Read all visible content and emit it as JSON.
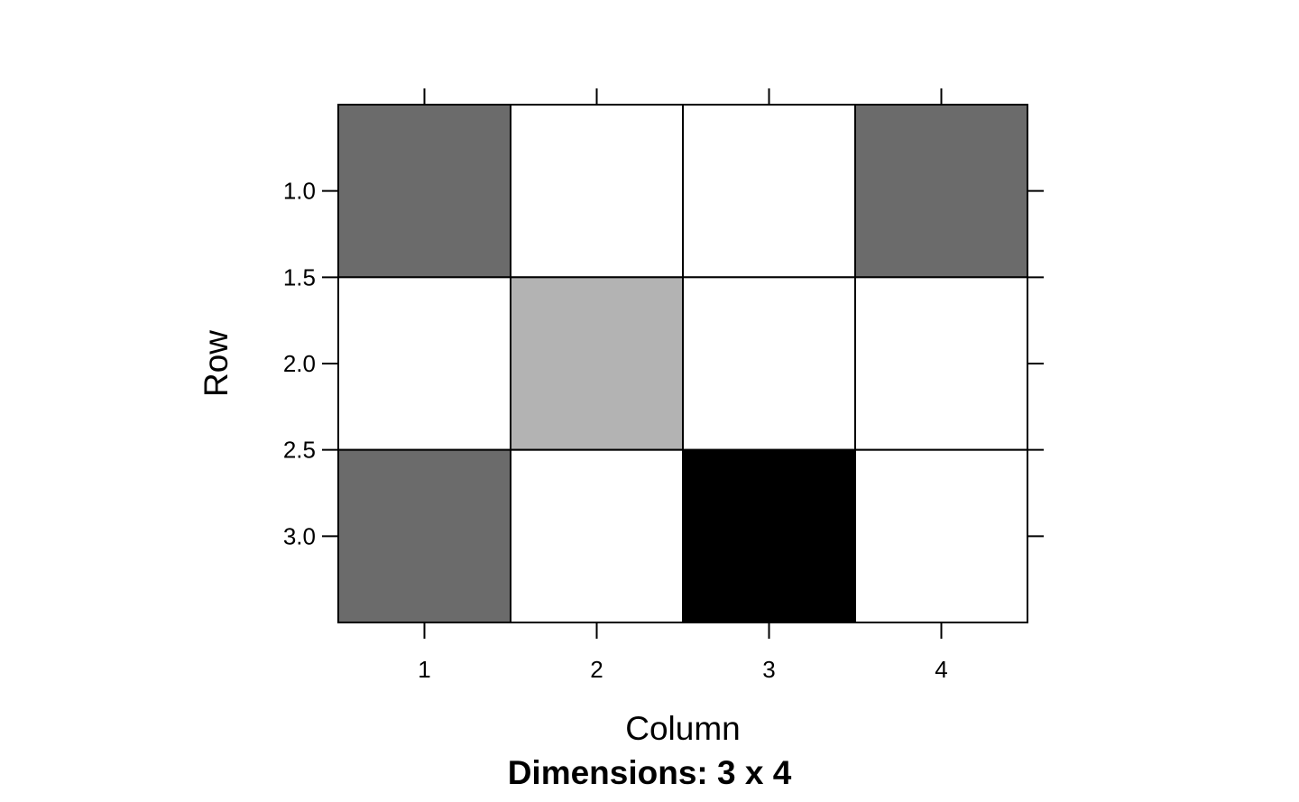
{
  "chart_data": {
    "type": "heatmap",
    "title": "",
    "xlabel": "Column",
    "ylabel": "Row",
    "subtitle": "Dimensions: 3 x 4",
    "x_categories": [
      1,
      2,
      3,
      4
    ],
    "x_tick_labels": [
      "1",
      "2",
      "3",
      "4"
    ],
    "y_ticks": [
      1.0,
      1.5,
      2.0,
      2.5,
      3.0
    ],
    "y_tick_labels": [
      "1.0",
      "1.5",
      "2.0",
      "2.5",
      "3.0"
    ],
    "xlim": [
      0.5,
      4.5
    ],
    "ylim": [
      0.5,
      3.5
    ],
    "y_axis_reversed": true,
    "grid": false,
    "cells": [
      {
        "row": 1,
        "col": 1,
        "color": "#6b6b6b"
      },
      {
        "row": 1,
        "col": 2,
        "color": "#ffffff"
      },
      {
        "row": 1,
        "col": 3,
        "color": "#ffffff"
      },
      {
        "row": 1,
        "col": 4,
        "color": "#6b6b6b"
      },
      {
        "row": 2,
        "col": 1,
        "color": "#ffffff"
      },
      {
        "row": 2,
        "col": 2,
        "color": "#b3b3b3"
      },
      {
        "row": 2,
        "col": 3,
        "color": "#ffffff"
      },
      {
        "row": 2,
        "col": 4,
        "color": "#ffffff"
      },
      {
        "row": 3,
        "col": 1,
        "color": "#6b6b6b"
      },
      {
        "row": 3,
        "col": 2,
        "color": "#ffffff"
      },
      {
        "row": 3,
        "col": 3,
        "color": "#000000"
      },
      {
        "row": 3,
        "col": 4,
        "color": "#ffffff"
      }
    ]
  }
}
